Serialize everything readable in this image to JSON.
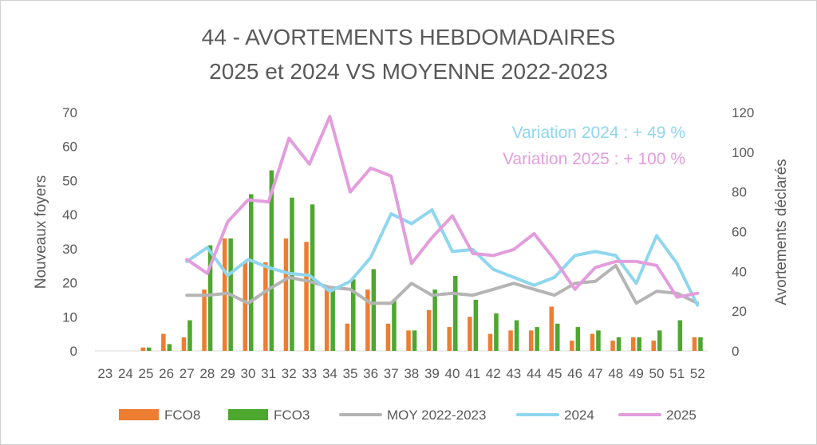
{
  "chart_data": {
    "type": "bar",
    "title_line1": "44 - AVORTEMENTS HEBDOMADAIRES",
    "title_line2": "2025 et 2024 VS MOYENNE 2022-2023",
    "ylabel_left": "Nouveaux foyers",
    "ylabel_right": "Avortements déclarés",
    "ylim_left": [
      0,
      70
    ],
    "ylim_right": [
      0,
      120
    ],
    "yticks_left": [
      "0",
      "10",
      "20",
      "30",
      "40",
      "50",
      "60",
      "70"
    ],
    "yticks_right": [
      "0",
      "20",
      "40",
      "60",
      "80",
      "100",
      "120"
    ],
    "categories": [
      "23",
      "24",
      "25",
      "26",
      "27",
      "28",
      "29",
      "30",
      "31",
      "32",
      "33",
      "34",
      "35",
      "36",
      "37",
      "38",
      "39",
      "40",
      "41",
      "42",
      "43",
      "44",
      "45",
      "46",
      "47",
      "48",
      "49",
      "50",
      "51",
      "52"
    ],
    "annotations": [
      {
        "text": "Variation 2024 : + 49 %",
        "color": "#8fd6ef"
      },
      {
        "text": "Variation 2025 : + 100 %",
        "color": "#e39ddd"
      }
    ],
    "bar_series": [
      {
        "name": "FCO8",
        "color": "#ed7d31",
        "axis": "left",
        "values": [
          0,
          0,
          1,
          5,
          4,
          18,
          33,
          26,
          26,
          33,
          32,
          19,
          8,
          18,
          8,
          6,
          12,
          7,
          10,
          5,
          6,
          6,
          13,
          3,
          5,
          3,
          4,
          3,
          0,
          4
        ]
      },
      {
        "name": "FCO3",
        "color": "#4ea72e",
        "axis": "left",
        "values": [
          0,
          0,
          1,
          2,
          9,
          31,
          33,
          46,
          53,
          45,
          43,
          18,
          21,
          24,
          15,
          6,
          18,
          22,
          15,
          11,
          9,
          7,
          8,
          7,
          6,
          4,
          4,
          6,
          9,
          4
        ]
      }
    ],
    "line_series": [
      {
        "name": "MOY 2022-2023",
        "color": "#b4b4b4",
        "axis": "right",
        "start_index": 4,
        "values": [
          28,
          28,
          29,
          24,
          31,
          37,
          35,
          32,
          31,
          24,
          24,
          34,
          28,
          29,
          28,
          31,
          34,
          31,
          28,
          34,
          35,
          43,
          24,
          30,
          29,
          24
        ]
      },
      {
        "name": "2024",
        "color": "#8fd6ef",
        "axis": "right",
        "start_index": 4,
        "values": [
          45,
          52,
          38,
          46,
          42,
          39,
          38,
          30,
          35,
          47,
          69,
          64,
          71,
          50,
          51,
          41,
          37,
          33,
          37,
          48,
          50,
          48,
          34,
          58,
          44,
          23
        ]
      },
      {
        "name": "2025",
        "color": "#e39ddd",
        "axis": "right",
        "start_index": 4,
        "values": [
          46,
          39,
          65,
          76,
          75,
          107,
          94,
          118,
          80,
          92,
          88,
          44,
          57,
          68,
          49,
          48,
          51,
          59,
          46,
          31,
          42,
          45,
          45,
          43,
          27,
          29
        ]
      }
    ],
    "legend": [
      "FCO8",
      "FCO3",
      "MOY 2022-2023",
      "2024",
      "2025"
    ],
    "legend_position": "bottom"
  }
}
